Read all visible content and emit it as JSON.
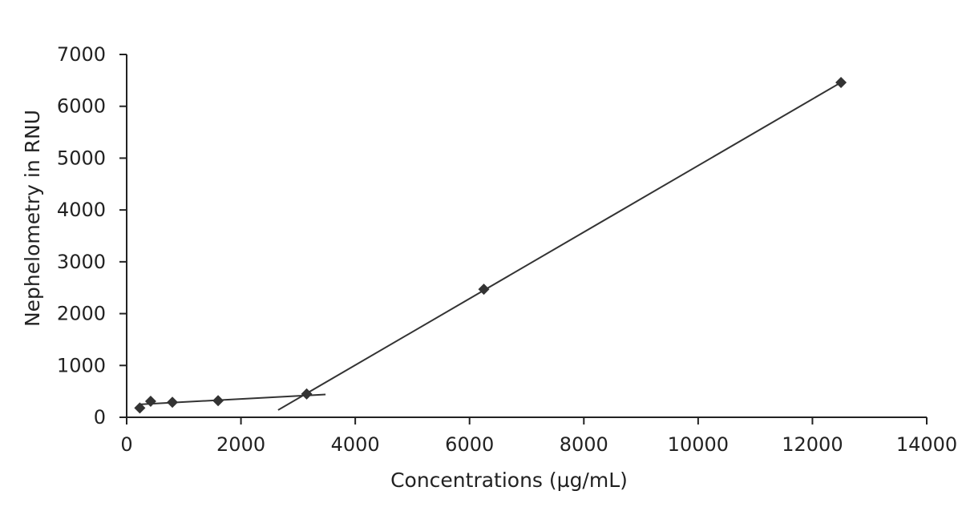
{
  "chart_data": {
    "type": "scatter",
    "title": "",
    "xlabel": "Concentrations (µg/mL)",
    "ylabel": "Nephelometry in RNU",
    "xlim": [
      0,
      14000
    ],
    "ylim": [
      0,
      7000
    ],
    "x_ticks": [
      0,
      2000,
      4000,
      6000,
      8000,
      10000,
      12000,
      14000
    ],
    "y_ticks": [
      0,
      1000,
      2000,
      3000,
      4000,
      5000,
      6000,
      7000
    ],
    "x_tick_labels": [
      "0",
      "2000",
      "4000",
      "6000",
      "8000",
      "10000",
      "12000",
      "14000"
    ],
    "y_tick_labels": [
      "0",
      "1000",
      "2000",
      "3000",
      "4000",
      "5000",
      "6000",
      "7000"
    ],
    "grid": false,
    "legend": "none",
    "series": [
      {
        "marker": "diamond",
        "color": "#333333",
        "x": [
          230,
          420,
          800,
          1600,
          3150,
          6250,
          12500
        ],
        "y": [
          180,
          310,
          290,
          320,
          450,
          2470,
          6460
        ]
      }
    ],
    "trendlines": [
      {
        "x": [
          230,
          3480
        ],
        "y": [
          250,
          440
        ],
        "color": "#333333"
      },
      {
        "x": [
          2650,
          12500
        ],
        "y": [
          140,
          6460
        ],
        "color": "#333333"
      }
    ]
  }
}
